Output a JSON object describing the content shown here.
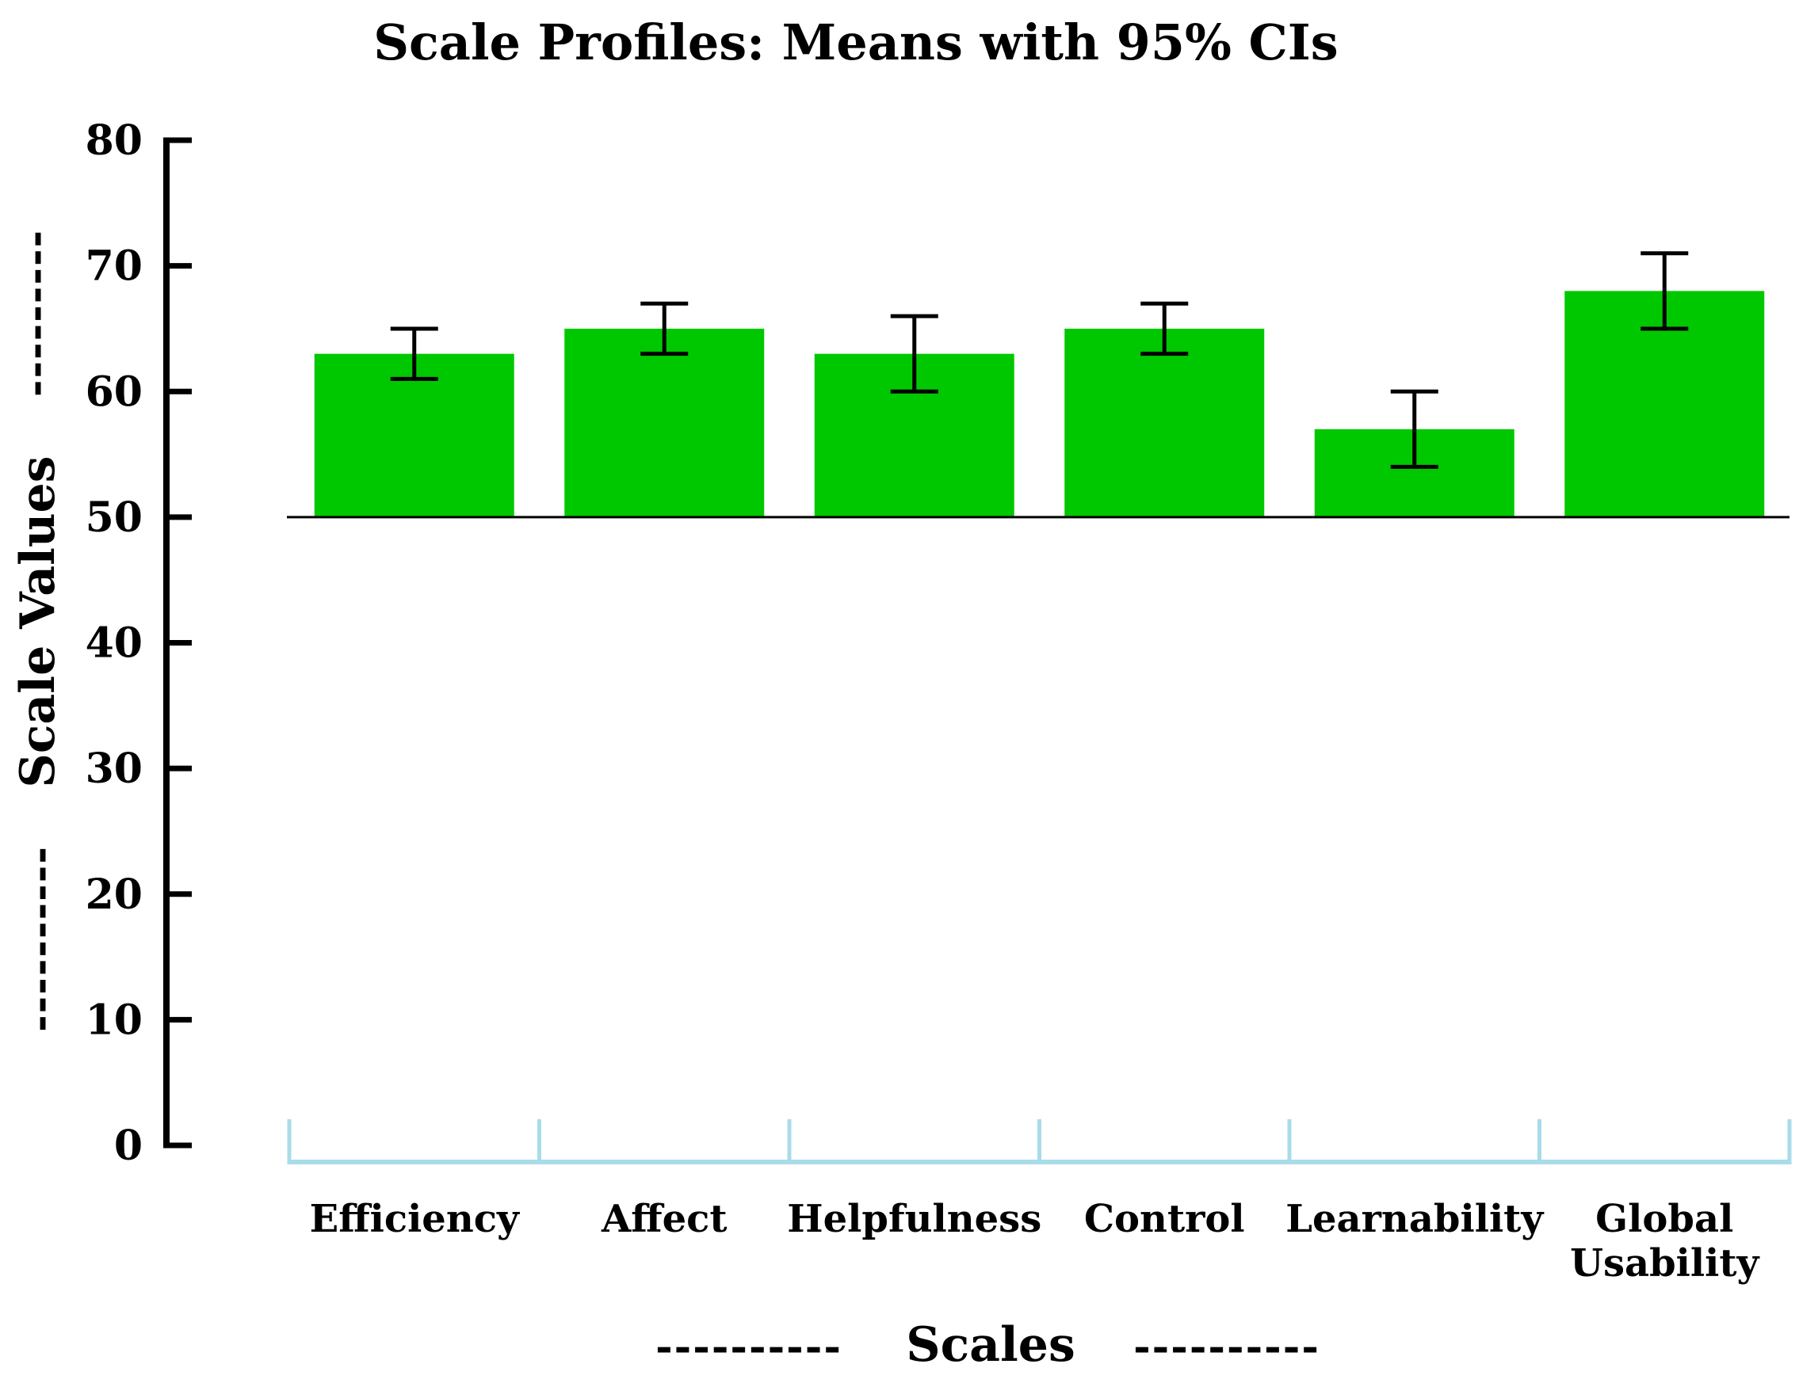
{
  "chart_data": {
    "type": "bar",
    "title": "Scale Profiles: Means with 95% CIs",
    "xlabel": "Scales",
    "ylabel": "Scale Values",
    "xlabel_decoration_left": "----------",
    "xlabel_decoration_right": "----------",
    "ylabel_decoration_top": "---------",
    "ylabel_decoration_bottom": "----------",
    "ylim": [
      0,
      80
    ],
    "yticks": [
      0,
      10,
      20,
      30,
      40,
      50,
      60,
      70,
      80
    ],
    "baseline": 50,
    "categories": [
      [
        "Efficiency"
      ],
      [
        "Affect"
      ],
      [
        "Helpfulness"
      ],
      [
        "Control"
      ],
      [
        "Learnability"
      ],
      [
        "Global",
        "Usability"
      ]
    ],
    "series": [
      {
        "name": "Mean",
        "values": [
          63,
          65,
          63,
          65,
          57,
          68
        ],
        "ci_lower": [
          61,
          63,
          60,
          63,
          54,
          65
        ],
        "ci_upper": [
          65,
          67,
          66,
          67,
          60,
          71
        ]
      }
    ],
    "colors": {
      "bar": "#00c800",
      "axis": "#000000",
      "category_axis": "#a8dce8",
      "error_bar": "#000000"
    }
  }
}
